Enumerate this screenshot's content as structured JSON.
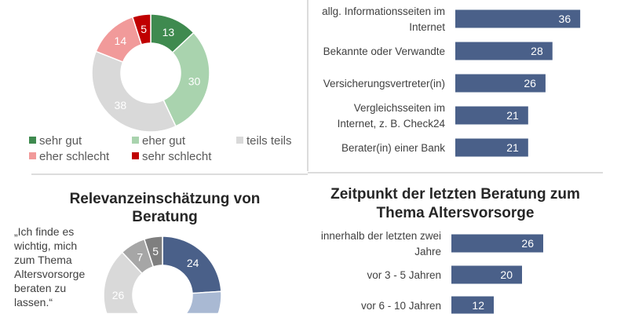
{
  "chart_data": [
    {
      "type": "pie",
      "donut": true,
      "categories": [
        "sehr gut",
        "eher gut",
        "teils teils",
        "eher schlecht",
        "sehr schlecht"
      ],
      "values": [
        13,
        30,
        38,
        14,
        5
      ],
      "colors": [
        "#3f8a4f",
        "#a9d3ae",
        "#d9d9d9",
        "#f19a9a",
        "#c00000"
      ],
      "legend": "bottom"
    },
    {
      "type": "bar",
      "orientation": "horizontal",
      "categories": [
        "allg. Informationsseiten im Internet",
        "Bekannte oder Verwandte",
        "Versicherungsvertreter(in)",
        "Vergleichsseiten im Internet, z. B. Check24",
        "Berater(in) einer Bank"
      ],
      "values": [
        36,
        28,
        26,
        21,
        21
      ],
      "color": "#4a6089"
    },
    {
      "type": "pie",
      "donut": true,
      "title": "Relevanzeinschätzung von Beratung",
      "annotation": "„Ich finde es wichtig, mich zum Thema Altersvorsorge beraten zu lassen.“",
      "values": [
        24,
        38,
        26,
        7,
        5
      ],
      "labels_shown": [
        "24",
        "",
        "26",
        "7",
        "5"
      ],
      "colors": [
        "#4a6089",
        "#a9b9d3",
        "#d9d9d9",
        "#a6a6a6",
        "#7f7f7f"
      ]
    },
    {
      "type": "bar",
      "orientation": "horizontal",
      "title": "Zeitpunkt der letzten Beratung zum Thema Altersvorsorge",
      "categories": [
        "innerhalb der letzten zwei Jahre",
        "vor 3 - 5 Jahren",
        "vor 6 - 10 Jahren"
      ],
      "values": [
        26,
        20,
        12
      ],
      "color": "#4a6089"
    }
  ]
}
